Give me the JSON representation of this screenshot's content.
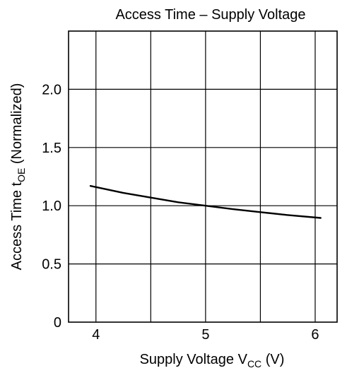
{
  "chart_data": {
    "type": "line",
    "title": "Access Time – Supply Voltage",
    "xlabel": {
      "main": "Supply Voltage  V",
      "sub": "CC",
      "unit": "  (V)"
    },
    "ylabel": {
      "main": "Access Time  t",
      "sub": "OE",
      "unit": "  (Normalized)"
    },
    "xlim": [
      3.75,
      6.2
    ],
    "ylim": [
      0,
      2.5
    ],
    "x_ticks": [
      4,
      5,
      6
    ],
    "x_tick_labels": [
      "4",
      "5",
      "6"
    ],
    "y_ticks": [
      0,
      0.5,
      1.0,
      1.5,
      2.0
    ],
    "y_tick_labels": [
      "0",
      "0.5",
      "1.0",
      "1.5",
      "2.0"
    ],
    "x_grid": [
      4,
      4.5,
      5,
      5.5,
      6
    ],
    "y_grid": [
      0.5,
      1.0,
      1.5,
      2.0
    ],
    "grid": true,
    "series": [
      {
        "x": [
          3.95,
          4.25,
          4.5,
          4.75,
          5.0,
          5.25,
          5.5,
          5.75,
          6.05
        ],
        "y": [
          1.17,
          1.11,
          1.07,
          1.03,
          1.0,
          0.97,
          0.945,
          0.92,
          0.895
        ]
      }
    ]
  }
}
